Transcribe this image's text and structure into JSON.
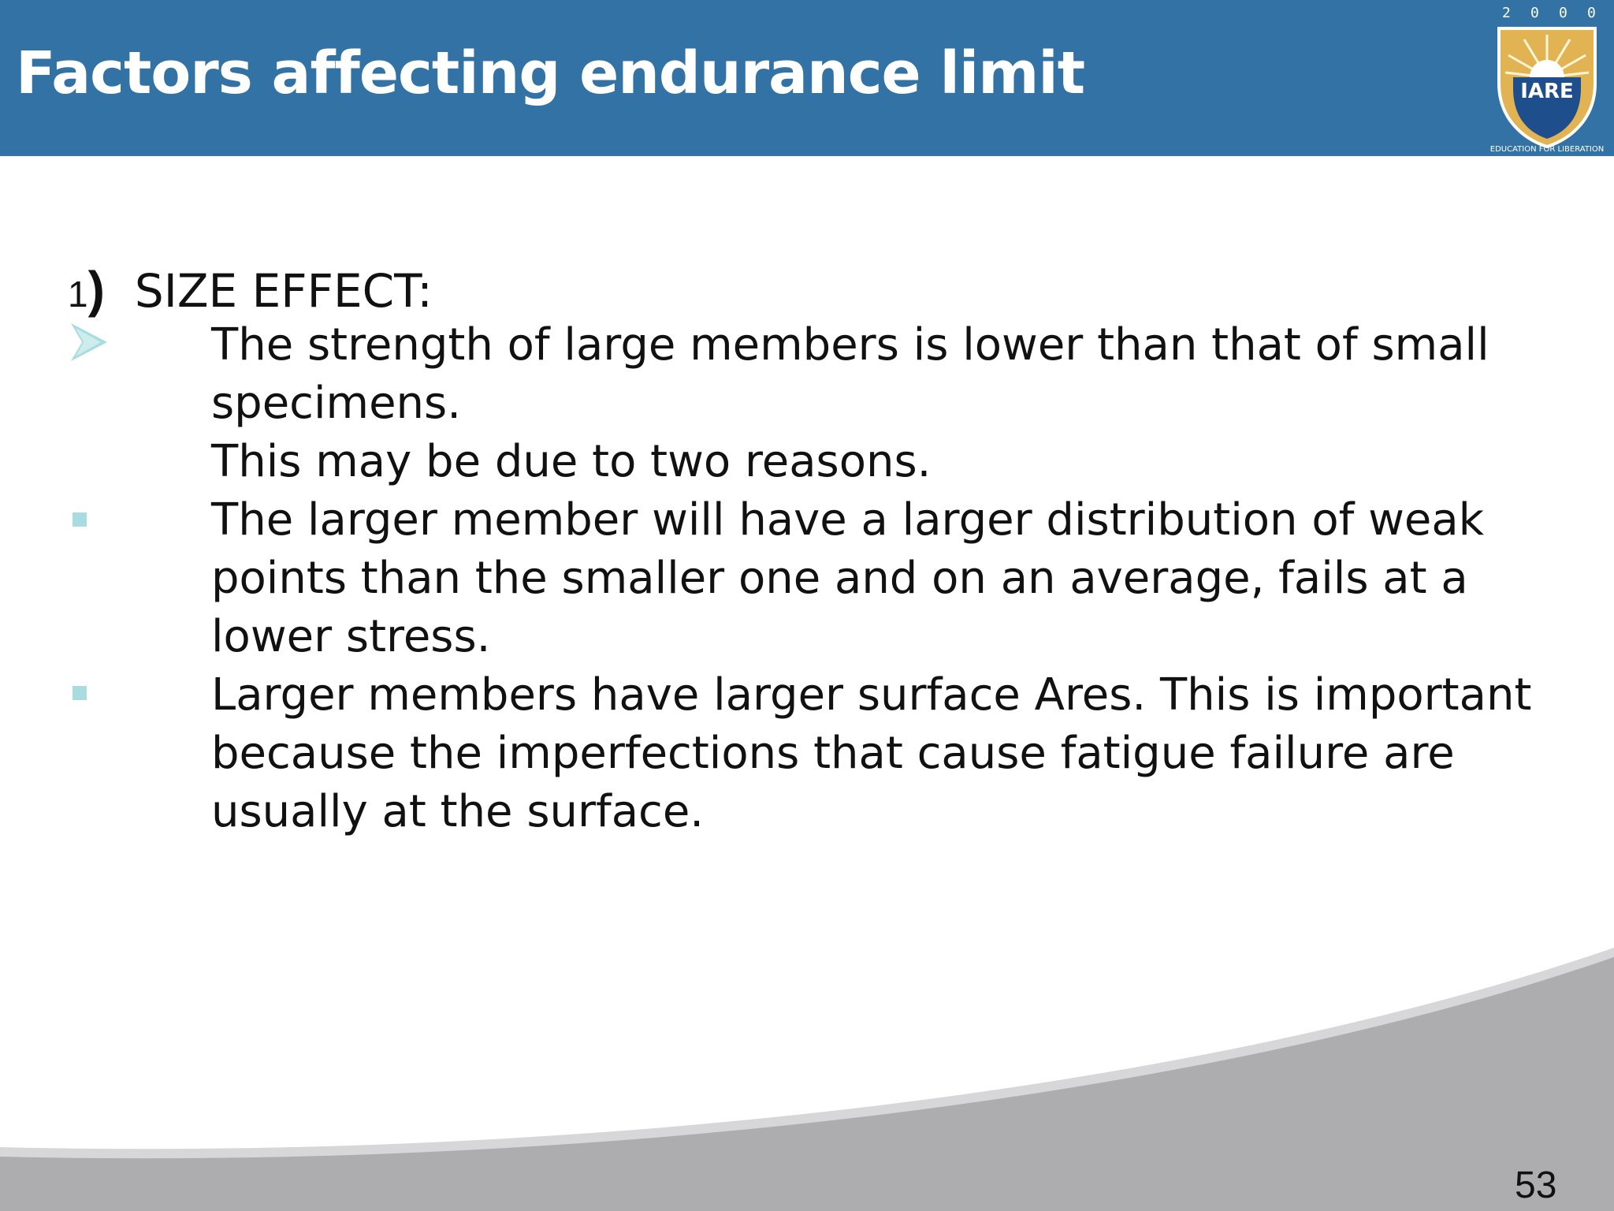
{
  "slide": {
    "title": "Factors affecting endurance limit",
    "logo": {
      "year": "2 0 0 0",
      "name": "IARE",
      "motto": "EDUCATION FOR LIBERATION",
      "year_digits": [
        "2",
        "0",
        "0",
        "0"
      ]
    },
    "heading": {
      "number": "1",
      "paren": ")",
      "text": "SIZE EFFECT:"
    },
    "lines": [
      "The strength of large members is lower than that of small",
      "specimens.",
      "This may be due to two reasons.",
      "The larger member will have a larger distribution of weak",
      "points than the smaller one and on an average, fails at a",
      "lower stress.",
      "Larger members have larger surface Ares. This is important",
      "because the imperfections that cause fatigue failure are",
      "usually at the surface."
    ],
    "page_number": "53"
  },
  "colors": {
    "header": "#3272a5",
    "bullet": "#a9dcdf",
    "footer_gray": "#adadb0"
  }
}
